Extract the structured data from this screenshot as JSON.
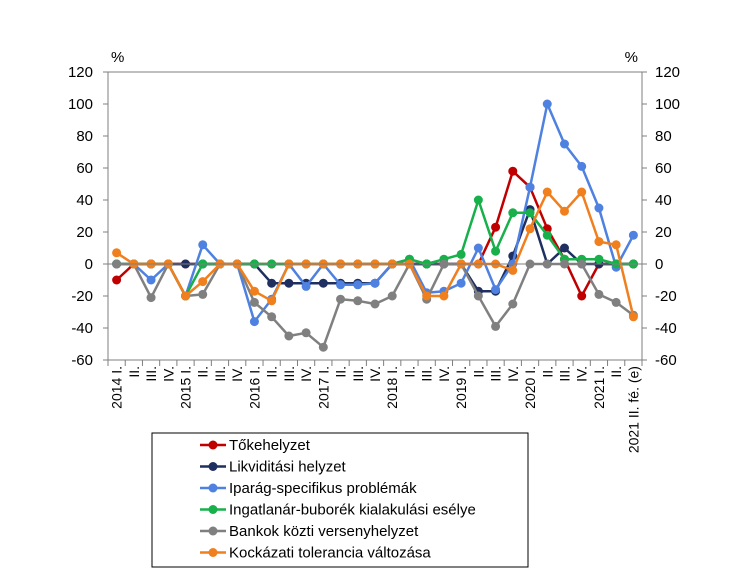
{
  "chart_data": {
    "type": "line",
    "left_unit": "%",
    "right_unit": "%",
    "ylim": [
      -60,
      120
    ],
    "yticks": [
      120,
      100,
      80,
      60,
      40,
      20,
      0,
      -20,
      -40,
      -60
    ],
    "grid": false,
    "x": [
      "2014 I.",
      "II.",
      "III.",
      "IV.",
      "2015 I.",
      "II.",
      "III.",
      "IV.",
      "2016 I.",
      "II.",
      "III.",
      "IV.",
      "2017 I.",
      "II.",
      "III.",
      "IV.",
      "2018 I.",
      "II.",
      "III.",
      "IV.",
      "2019 I.",
      "II.",
      "III.",
      "IV.",
      "2020 I.",
      "II.",
      "III.",
      "IV.",
      "2021 I.",
      "II.",
      "2021 II. fé. (e)"
    ],
    "legend_position": "bottom",
    "series": [
      {
        "name": "Tőkehelyzet",
        "color": "#c00000",
        "values": [
          -10,
          0,
          0,
          0,
          0,
          0,
          0,
          0,
          0,
          0,
          0,
          0,
          0,
          0,
          0,
          0,
          0,
          0,
          0,
          0,
          0,
          0,
          23,
          58,
          48,
          22,
          3,
          -20,
          0,
          0,
          0
        ]
      },
      {
        "name": "Likviditási helyzet",
        "color": "#1f2f5f",
        "values": [
          0,
          0,
          0,
          0,
          0,
          0,
          0,
          0,
          0,
          -12,
          -12,
          -12,
          -12,
          -12,
          -12,
          -12,
          0,
          0,
          0,
          0,
          0,
          -17,
          -17,
          5,
          34,
          0,
          10,
          0,
          0,
          0,
          0
        ]
      },
      {
        "name": "Iparág-specifikus problémák",
        "color": "#4f81e0",
        "values": [
          0,
          0,
          -10,
          0,
          -20,
          12,
          0,
          0,
          -36,
          -22,
          0,
          -14,
          0,
          -13,
          -13,
          -12,
          0,
          3,
          -18,
          -17,
          -12,
          10,
          -16,
          0,
          48,
          100,
          75,
          61,
          35,
          -2,
          18
        ]
      },
      {
        "name": "Ingatlanár-buborék kialakulási esélye",
        "color": "#17b04a",
        "values": [
          0,
          0,
          0,
          0,
          -20,
          0,
          0,
          0,
          0,
          0,
          0,
          0,
          0,
          0,
          0,
          0,
          0,
          3,
          0,
          3,
          6,
          40,
          8,
          32,
          32,
          18,
          3,
          3,
          3,
          0,
          0
        ]
      },
      {
        "name": "Bankok közti versenyhelyzet",
        "color": "#808080",
        "values": [
          0,
          0,
          -21,
          0,
          -20,
          -19,
          0,
          0,
          -24,
          -33,
          -45,
          -43,
          -52,
          -22,
          -23,
          -25,
          -20,
          0,
          -22,
          0,
          0,
          -20,
          -39,
          -25,
          0,
          0,
          0,
          0,
          -19,
          -24,
          -32
        ]
      },
      {
        "name": "Kockázati tolerancia változása",
        "color": "#f07f1e",
        "values": [
          7,
          0,
          0,
          0,
          -20,
          -11,
          0,
          0,
          -17,
          -23,
          0,
          0,
          0,
          0,
          0,
          0,
          0,
          0,
          -20,
          -20,
          0,
          0,
          0,
          -4,
          22,
          45,
          33,
          45,
          14,
          12,
          -33
        ]
      }
    ]
  }
}
